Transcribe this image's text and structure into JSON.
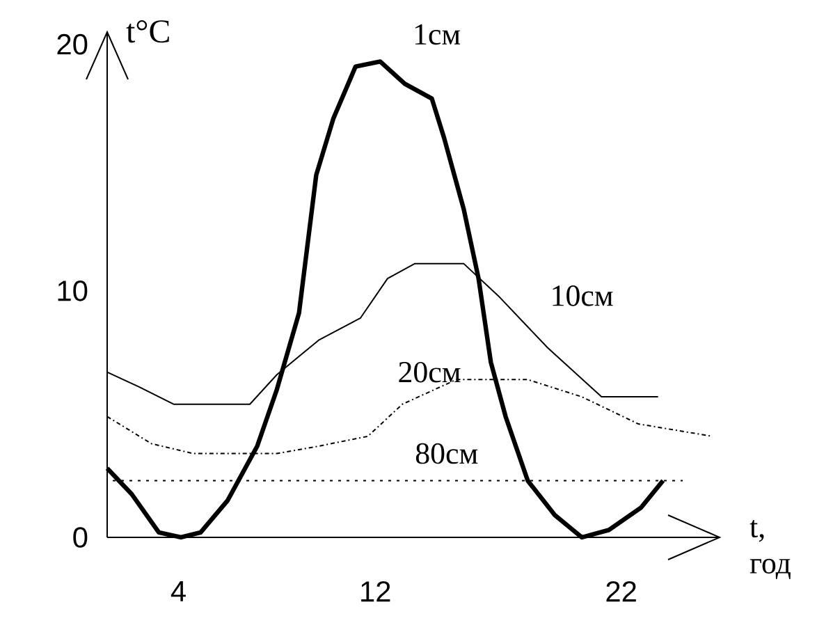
{
  "chart_data": {
    "type": "line",
    "xlabel": "t, год",
    "ylabel": "t°C",
    "xlim": [
      1.1,
      26
    ],
    "ylim": [
      0,
      20.5
    ],
    "xticks": [
      4,
      12,
      22
    ],
    "yticks": [
      0,
      10,
      20
    ],
    "grid": false,
    "marker": "none",
    "series": [
      {
        "name": "1см",
        "color": "#000000",
        "line_style": "solid",
        "x": [
          1.1,
          2.1,
          3.2,
          4.1,
          4.9,
          6.0,
          7.2,
          8.0,
          8.9,
          9.6,
          10.3,
          11.2,
          12.2,
          13.2,
          14.3,
          14.8,
          15.6,
          16.2,
          16.7,
          17.3,
          18.2,
          19.3,
          20.4,
          21.5,
          22.8,
          23.7
        ],
        "values": [
          2.8,
          1.75,
          0.2,
          0,
          0.2,
          1.5,
          3.7,
          6.0,
          9.1,
          14.7,
          17.0,
          19.1,
          19.3,
          18.4,
          17.8,
          16.2,
          13.3,
          10.5,
          7.1,
          4.9,
          2.3,
          0.9,
          0,
          0.3,
          1.2,
          2.3
        ]
      },
      {
        "name": "10см",
        "color": "#000000",
        "line_style": "solid",
        "x": [
          1.1,
          2.4,
          3.8,
          6.9,
          8.0,
          9.7,
          11.4,
          12.5,
          13.6,
          15.6,
          17.0,
          19.0,
          21.2,
          23.5
        ],
        "values": [
          6.7,
          6.1,
          5.4,
          5.4,
          6.6,
          8.0,
          8.9,
          10.5,
          11.1,
          11.1,
          9.8,
          7.7,
          5.7,
          5.7
        ]
      },
      {
        "name": "20см",
        "color": "#000000",
        "line_style": "dashed",
        "x": [
          1.1,
          2.9,
          4.6,
          8.0,
          9.7,
          11.7,
          13.1,
          15.3,
          18.2,
          20.4,
          22.7,
          25.7
        ],
        "values": [
          4.9,
          3.8,
          3.4,
          3.4,
          3.7,
          4.1,
          5.4,
          6.4,
          6.4,
          5.7,
          4.6,
          4.1
        ]
      },
      {
        "name": "80см",
        "color": "#000000",
        "line_style": "dotted",
        "x": [
          1.1,
          24.5
        ],
        "values": [
          2.3,
          2.3
        ]
      }
    ]
  }
}
